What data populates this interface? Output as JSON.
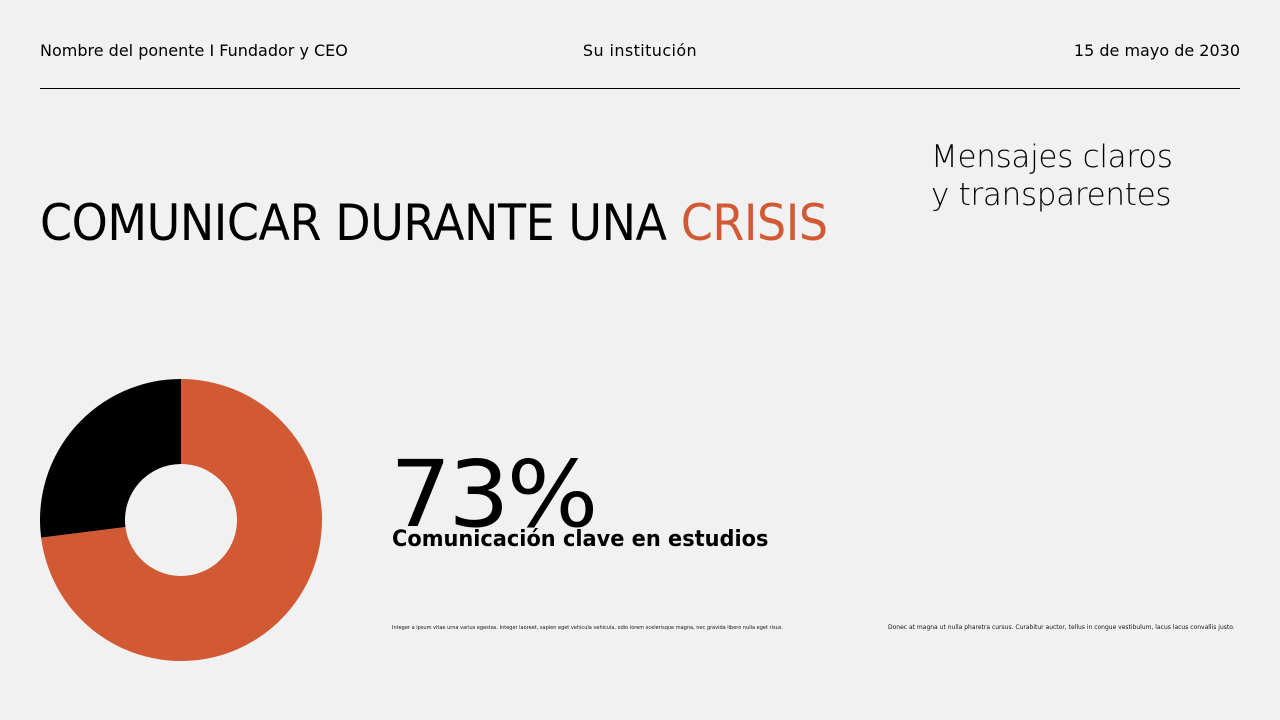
{
  "header": {
    "speaker": "Nombre del ponente I Fundador y CEO",
    "institution": "Su institución",
    "date": "15 de mayo de 2030"
  },
  "title": {
    "main": "COMUNICAR DURANTE UNA ",
    "accent": "CRISIS"
  },
  "subtitle": {
    "line1": "Mensajes claros",
    "line2": "y transparentes"
  },
  "stat": {
    "value": "73%",
    "label": "Comunicación clave en estudios"
  },
  "body_text": {
    "left": "Integer a ipsum vitae urna varius egestas. Integer laoreet, sapien eget vehicula vehicula, odio lorem scelerisque magna, nec gravida libero nulla eget risus. Nulla facilisi.",
    "right": "Donec at magna ut nulla pharetra cursus. Curabitur auctor, tellus in congue vestibulum, lacus lacus convallis justo."
  },
  "colors": {
    "accent": "#d15a35",
    "dark": "#000000",
    "background": "#f2f1f1"
  },
  "chart_data": {
    "type": "pie",
    "style": "donut",
    "slices": [
      {
        "value": 73,
        "color": "#d15a35"
      },
      {
        "value": 27,
        "color": "#000000"
      }
    ]
  }
}
